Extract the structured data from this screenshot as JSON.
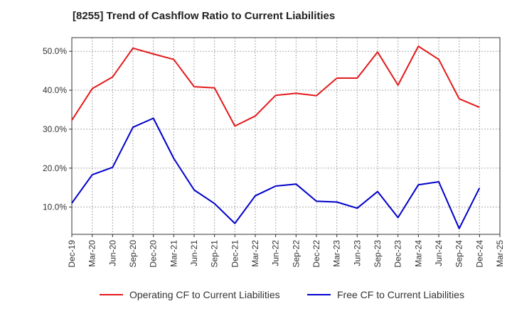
{
  "chart_data": {
    "type": "line",
    "title": "[8255]  Trend of Cashflow Ratio to Current Liabilities",
    "categories": [
      "Dec-19",
      "Mar-20",
      "Jun-20",
      "Sep-20",
      "Dec-20",
      "Mar-21",
      "Jun-21",
      "Sep-21",
      "Dec-21",
      "Mar-22",
      "Jun-22",
      "Sep-22",
      "Dec-22",
      "Mar-23",
      "Jun-23",
      "Sep-23",
      "Dec-23",
      "Mar-24",
      "Jun-24",
      "Sep-24",
      "Dec-24",
      "Mar-25"
    ],
    "series": [
      {
        "name": "Operating CF to Current Liabilities",
        "color": "#e31a1c",
        "values": [
          32.3,
          40.4,
          43.4,
          50.8,
          49.3,
          47.9,
          40.9,
          40.6,
          30.8,
          33.4,
          38.7,
          39.2,
          38.6,
          43.1,
          43.1,
          49.8,
          41.3,
          51.3,
          47.9,
          37.8,
          35.6,
          null
        ]
      },
      {
        "name": "Free CF to Current Liabilities",
        "color": "#0000cc",
        "values": [
          11.0,
          18.3,
          20.2,
          30.5,
          32.8,
          22.5,
          14.4,
          10.9,
          5.8,
          12.9,
          15.4,
          15.9,
          11.5,
          11.3,
          9.7,
          14.0,
          7.3,
          15.7,
          16.5,
          4.5,
          14.9,
          null
        ]
      }
    ],
    "yticks": [
      "10.0%",
      "20.0%",
      "30.0%",
      "40.0%",
      "50.0%"
    ],
    "ytick_values": [
      10,
      20,
      30,
      40,
      50
    ],
    "ylim": [
      3,
      53.5
    ],
    "grid": true,
    "legend_position": "bottom"
  }
}
